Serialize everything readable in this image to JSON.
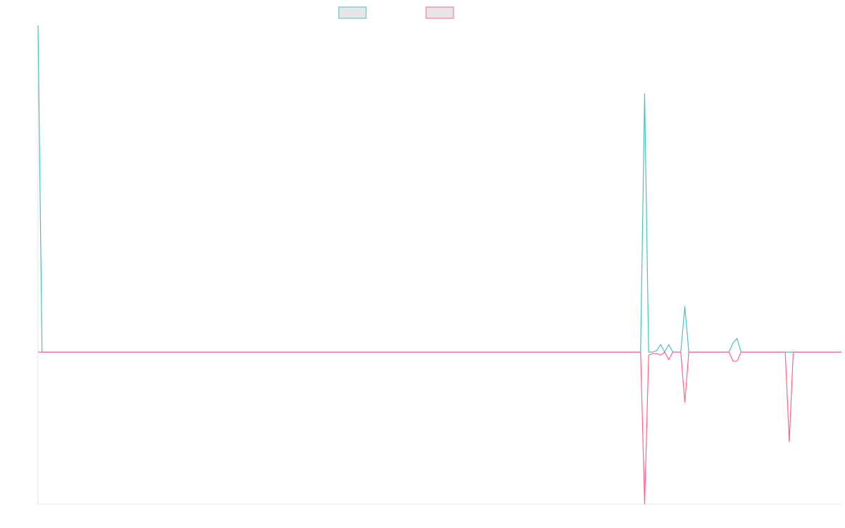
{
  "chart_data": {
    "type": "line",
    "title": "",
    "xlabel": "",
    "ylabel": "",
    "x_range": [
      0,
      200
    ],
    "ylim": [
      -1,
      2.15
    ],
    "grid": false,
    "legend": {
      "placement": "top-center",
      "entries": 2
    },
    "series": [
      {
        "color": "#4bc0c0",
        "fill": "#e6e6e6",
        "points": [
          [
            0,
            2.15
          ],
          [
            1,
            0
          ],
          [
            150,
            0
          ],
          [
            151,
            1.7
          ],
          [
            152,
            0
          ],
          [
            153,
            0
          ],
          [
            154,
            0.01
          ],
          [
            155,
            0.05
          ],
          [
            156,
            0
          ],
          [
            157,
            0.05
          ],
          [
            158,
            0
          ],
          [
            160,
            0
          ],
          [
            161,
            0.3
          ],
          [
            162,
            0
          ],
          [
            172,
            0
          ],
          [
            173,
            0.06
          ],
          [
            174,
            0.09
          ],
          [
            175,
            0
          ],
          [
            180,
            0
          ],
          [
            200,
            0
          ]
        ]
      },
      {
        "color": "#ff6384",
        "fill": "#e6e6e6",
        "points": [
          [
            0,
            0
          ],
          [
            150,
            0
          ],
          [
            151,
            -1
          ],
          [
            152,
            -0.02
          ],
          [
            153,
            -0.01
          ],
          [
            154,
            -0.01
          ],
          [
            155,
            -0.02
          ],
          [
            156,
            0
          ],
          [
            157,
            -0.05
          ],
          [
            158,
            0
          ],
          [
            160,
            0
          ],
          [
            161,
            -0.33
          ],
          [
            162,
            0
          ],
          [
            172,
            0
          ],
          [
            173,
            -0.06
          ],
          [
            174,
            -0.06
          ],
          [
            175,
            0
          ],
          [
            186,
            0
          ],
          [
            187,
            -0.59
          ],
          [
            188,
            0
          ],
          [
            200,
            0
          ]
        ]
      }
    ]
  }
}
